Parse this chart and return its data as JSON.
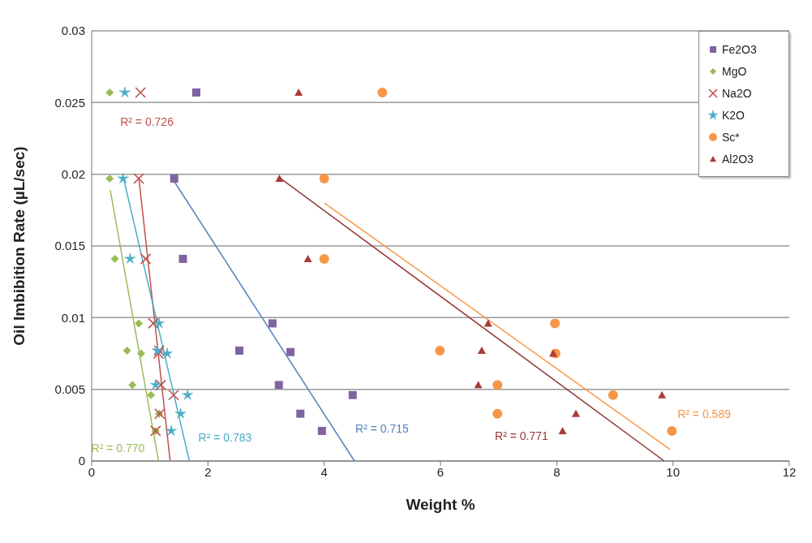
{
  "chart_data": {
    "type": "scatter",
    "xlabel": "Weight %",
    "ylabel": "Oil Imbibition Rate (µL/sec)",
    "xlim": [
      0,
      12
    ],
    "xticks": [
      0,
      2,
      4,
      6,
      8,
      10,
      12
    ],
    "ylim": [
      0,
      0.03
    ],
    "yticks": [
      0,
      0.005,
      0.01,
      0.015,
      0.02,
      0.025,
      0.03
    ],
    "grid": "y",
    "legend": "top right",
    "series": [
      {
        "name": "Fe2O3",
        "color": "#8064a2",
        "marker": "square",
        "x": [
          1.8,
          1.42,
          1.57,
          3.11,
          2.54,
          3.42,
          3.22,
          4.49,
          3.59,
          3.96
        ],
        "values": [
          0.0257,
          0.0197,
          0.0141,
          0.0096,
          0.0077,
          0.0076,
          0.0053,
          0.0046,
          0.0033,
          0.0021
        ]
      },
      {
        "name": "MgO",
        "color": "#9bbb59",
        "marker": "diamond",
        "x": [
          0.31,
          0.31,
          0.4,
          0.81,
          0.61,
          0.85,
          0.7,
          1.02,
          1.16,
          1.1
        ],
        "values": [
          0.0257,
          0.0197,
          0.0141,
          0.0096,
          0.0077,
          0.0075,
          0.0053,
          0.0046,
          0.0033,
          0.0021
        ]
      },
      {
        "name": "Na2O",
        "color": "#c0504d",
        "marker": "cross",
        "x": [
          0.84,
          0.81,
          0.93,
          1.06,
          1.16,
          1.15,
          1.19,
          1.41,
          1.17,
          1.1
        ],
        "values": [
          0.0257,
          0.0197,
          0.0141,
          0.0096,
          0.0077,
          0.0075,
          0.0053,
          0.0046,
          0.0033,
          0.0021
        ]
      },
      {
        "name": "K2O",
        "color": "#4bacc6",
        "marker": "star",
        "x": [
          0.57,
          0.54,
          0.66,
          1.16,
          1.13,
          1.3,
          1.1,
          1.65,
          1.53,
          1.37
        ],
        "values": [
          0.0257,
          0.0197,
          0.0141,
          0.0096,
          0.0077,
          0.0075,
          0.0053,
          0.0046,
          0.0033,
          0.0021
        ]
      },
      {
        "name": "Sc*",
        "color": "#f79646",
        "marker": "circle",
        "x": [
          5.0,
          4.0,
          4.0,
          7.97,
          5.99,
          7.98,
          6.98,
          8.97,
          6.98,
          9.98
        ],
        "values": [
          0.0257,
          0.0197,
          0.0141,
          0.0096,
          0.0077,
          0.0075,
          0.0053,
          0.0046,
          0.0033,
          0.0021
        ]
      },
      {
        "name": "Al2O3",
        "color": "#a93b3b",
        "marker": "triangle",
        "x": [
          3.56,
          3.23,
          3.72,
          6.82,
          6.71,
          7.94,
          6.65,
          9.81,
          8.33,
          8.1
        ],
        "values": [
          0.0257,
          0.0197,
          0.0141,
          0.0096,
          0.0077,
          0.0075,
          0.0053,
          0.0046,
          0.0033,
          0.0021
        ]
      },
      {
        "type": "line",
        "color": "#4f81bd",
        "x": [
          1.42,
          4.52
        ],
        "values": [
          0.0195,
          0
        ]
      },
      {
        "type": "line",
        "color": "#9bbb59",
        "x": [
          0.32,
          1.15
        ],
        "values": [
          0.0189,
          0
        ]
      },
      {
        "type": "line",
        "color": "#c0504d",
        "x": [
          0.81,
          1.35
        ],
        "values": [
          0.0198,
          0
        ]
      },
      {
        "type": "line",
        "color": "#4bacc6",
        "x": [
          0.55,
          1.68
        ],
        "values": [
          0.0197,
          0
        ]
      },
      {
        "type": "line",
        "color": "#f79646",
        "x": [
          4.0,
          9.95
        ],
        "values": [
          0.018,
          0.0008
        ]
      },
      {
        "type": "line",
        "color": "#953735",
        "x": [
          3.25,
          9.85
        ],
        "values": [
          0.0197,
          0
        ]
      }
    ],
    "annotations": [
      "R² = 0.715",
      "R² = 0.770",
      "R² = 0.726",
      "R² = 0.783",
      "R² = 0.589",
      "R² = 0.771"
    ]
  }
}
